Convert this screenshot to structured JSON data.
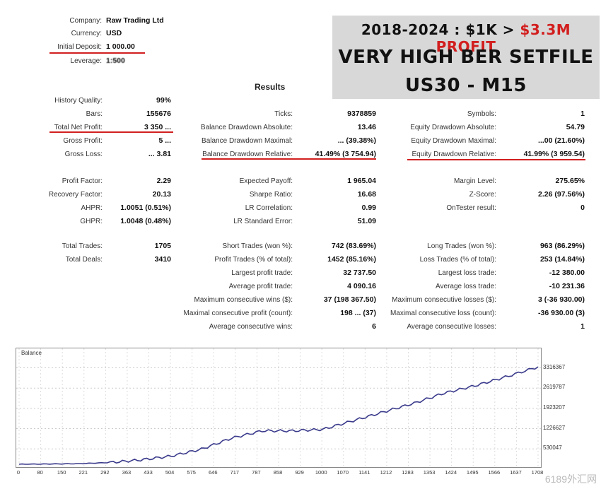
{
  "header": {
    "company_label": "Company:",
    "company_value": "Raw Trading Ltd",
    "currency_label": "Currency:",
    "currency_value": "USD",
    "deposit_label": "Initial Deposit:",
    "deposit_value": "1 000.00",
    "leverage_label": "Leverage:",
    "leverage_value": "1:500"
  },
  "banner": {
    "line1_prefix": "2018-2024 : $1K >",
    "line1_profit": "$3.3M PROFIT",
    "line2": "VERY HIGH BER SETFILE",
    "line3": "US30 - M15"
  },
  "results_title": "Results",
  "col1": [
    {
      "label": "History Quality:",
      "value": "99%"
    },
    {
      "label": "Bars:",
      "value": "155676"
    },
    {
      "label": "Total Net Profit:",
      "value": "3 350 ..."
    },
    {
      "label": "Gross Profit:",
      "value": "5 ..."
    },
    {
      "label": "Gross Loss:",
      "value": "... 3.81"
    },
    {
      "label": "Profit Factor:",
      "value": "2.29"
    },
    {
      "label": "Recovery Factor:",
      "value": "20.13"
    },
    {
      "label": "AHPR:",
      "value": "1.0051 (0.51%)"
    },
    {
      "label": "GHPR:",
      "value": "1.0048 (0.48%)"
    },
    {
      "label": "Total Trades:",
      "value": "1705"
    },
    {
      "label": "Total Deals:",
      "value": "3410"
    }
  ],
  "col2": [
    {
      "label": "Ticks:",
      "value": "9378859"
    },
    {
      "label": "Balance Drawdown Absolute:",
      "value": "13.46"
    },
    {
      "label": "Balance Drawdown Maximal:",
      "value": "... (39.38%)"
    },
    {
      "label": "Balance Drawdown Relative:",
      "value": "41.49% (3 754.94)"
    },
    {
      "label": "Expected Payoff:",
      "value": "1 965.04"
    },
    {
      "label": "Sharpe Ratio:",
      "value": "16.68"
    },
    {
      "label": "LR Correlation:",
      "value": "0.99"
    },
    {
      "label": "LR Standard Error:",
      "value": "51.09"
    },
    {
      "label": "Short Trades (won %):",
      "value": "742 (83.69%)"
    },
    {
      "label": "Profit Trades (% of total):",
      "value": "1452 (85.16%)"
    },
    {
      "label": "Largest profit trade:",
      "value": "32 737.50"
    },
    {
      "label": "Average profit trade:",
      "value": "4 090.16"
    },
    {
      "label": "Maximum consecutive wins ($):",
      "value": "37 (198 367.50)"
    },
    {
      "label": "Maximal consecutive profit (count):",
      "value": "198 ... (37)"
    },
    {
      "label": "Average consecutive wins:",
      "value": "6"
    }
  ],
  "col3": [
    {
      "label": "Symbols:",
      "value": "1"
    },
    {
      "label": "Equity Drawdown Absolute:",
      "value": "54.79"
    },
    {
      "label": "Equity Drawdown Maximal:",
      "value": "...00 (21.60%)"
    },
    {
      "label": "Equity Drawdown Relative:",
      "value": "41.99% (3 959.54)"
    },
    {
      "label": "Margin Level:",
      "value": "275.65%"
    },
    {
      "label": "Z-Score:",
      "value": "2.26 (97.56%)"
    },
    {
      "label": "OnTester result:",
      "value": "0"
    },
    {
      "label": "Long Trades (won %):",
      "value": "963 (86.29%)"
    },
    {
      "label": "Loss Trades (% of total):",
      "value": "253 (14.84%)"
    },
    {
      "label": "Largest loss trade:",
      "value": "-12 380.00"
    },
    {
      "label": "Average loss trade:",
      "value": "-10 231.36"
    },
    {
      "label": "Maximum consecutive losses ($):",
      "value": "3 (-36 930.00)"
    },
    {
      "label": "Maximal consecutive loss (count):",
      "value": "-36 930.00 (3)"
    },
    {
      "label": "Average consecutive losses:",
      "value": "1"
    }
  ],
  "chart_data": {
    "type": "line",
    "title": "Balance",
    "yticks": [
      "3316367",
      "2619787",
      "1923207",
      "1226627",
      "530047"
    ],
    "xticks": [
      "0",
      "80",
      "150",
      "221",
      "292",
      "363",
      "433",
      "504",
      "575",
      "646",
      "717",
      "787",
      "858",
      "929",
      "1000",
      "1070",
      "1141",
      "1212",
      "1283",
      "1353",
      "1424",
      "1495",
      "1566",
      "1637",
      "1708"
    ],
    "x": [
      0,
      100,
      200,
      300,
      400,
      500,
      600,
      700,
      800,
      900,
      1000,
      1100,
      1200,
      1300,
      1400,
      1500,
      1600,
      1708
    ],
    "y": [
      0,
      10000,
      20000,
      60000,
      150000,
      280000,
      520000,
      900000,
      1150000,
      1150000,
      1200000,
      1500000,
      1800000,
      2100000,
      2450000,
      2700000,
      3000000,
      3350000
    ],
    "ylim": [
      0,
      3500000
    ],
    "color": "#3a3a8c"
  },
  "watermark": "6189外汇网"
}
